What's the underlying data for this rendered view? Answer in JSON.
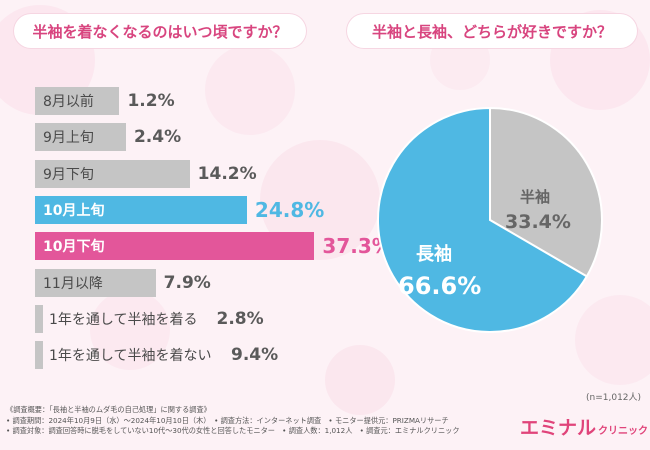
{
  "colors": {
    "pink": "#e3569a",
    "blue": "#4fb8e3",
    "gray": "#c5c5c5",
    "title": "#d8457f"
  },
  "chart_data": [
    {
      "type": "bar",
      "title": "半袖を着なくなるのはいつ頃ですか？",
      "unit": "%",
      "categories": [
        "8月以前",
        "9月上旬",
        "9月下旬",
        "10月上旬",
        "10月下旬",
        "11月以降",
        "1年を通して半袖を着る",
        "1年を通して半袖を着ない"
      ],
      "values": [
        1.2,
        2.4,
        14.2,
        24.8,
        37.3,
        7.9,
        2.8,
        9.4
      ],
      "labels": [
        "1.2%",
        "2.4%",
        "14.2%",
        "24.8%",
        "37.3%",
        "7.9%",
        "2.8%",
        "9.4%"
      ],
      "colors": [
        "gray",
        "gray",
        "gray",
        "blue",
        "pink",
        "gray",
        "gray",
        "gray"
      ],
      "orientation": "horizontal"
    },
    {
      "type": "pie",
      "title": "半袖と長袖、どちらが好きですか？",
      "categories": [
        "半袖",
        "長袖"
      ],
      "values": [
        33.4,
        66.6
      ],
      "labels": [
        "33.4%",
        "66.6%"
      ],
      "colors": [
        "gray",
        "blue"
      ],
      "note": "(n=1,012人)"
    }
  ],
  "footer": {
    "lines": [
      "《調査概要：「長袖と半袖のムダ毛の自己処理」に関する調査》",
      "• 調査期間：2024年10月9日（水）〜2024年10月10日（木）　• 調査方法：インターネット調査　• モニター提供元：PRIZMAリサーチ",
      "• 調査対象：調査回答時に脱毛をしていない10代〜30代の女性と回答したモニター　• 調査人数：1,012人　• 調査元：エミナルクリニック"
    ]
  },
  "logo": {
    "main": "エミナル",
    "sub": "クリニック"
  }
}
